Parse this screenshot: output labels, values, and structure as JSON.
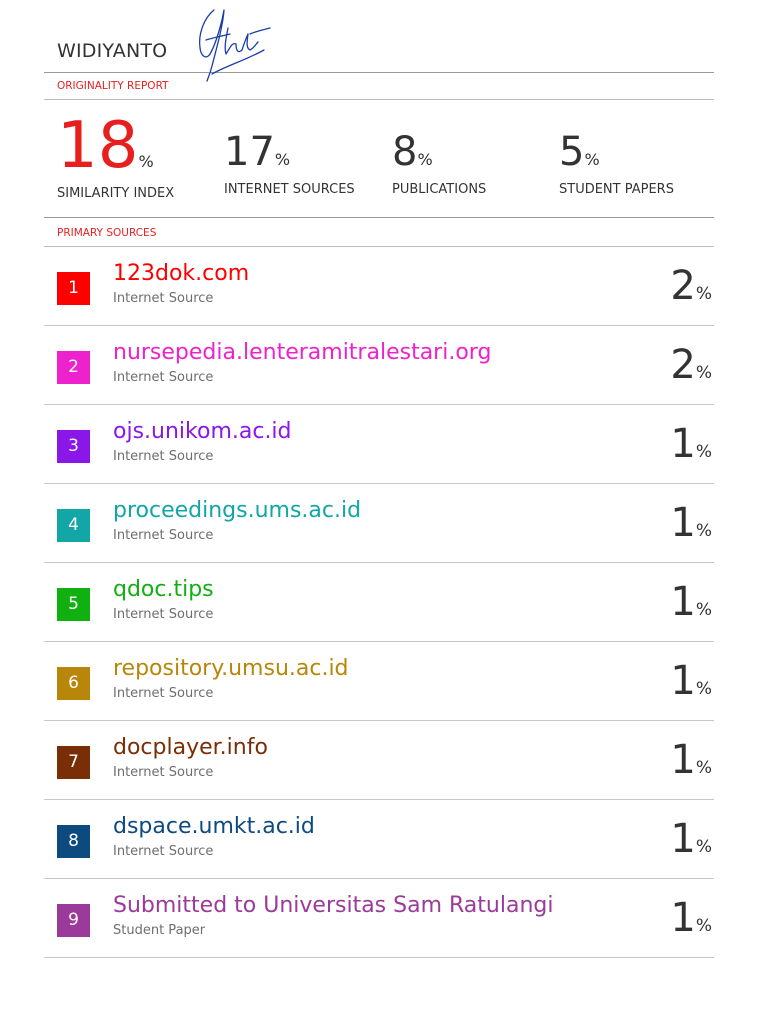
{
  "header": {
    "author": "WIDIYANTO",
    "signature_color": "#1a3ea8"
  },
  "report": {
    "title": "ORIGINALITY REPORT",
    "accent_color": "#e81f1f"
  },
  "stats": [
    {
      "value": "18",
      "unit": "%",
      "label": "SIMILARITY INDEX"
    },
    {
      "value": "17",
      "unit": "%",
      "label": "INTERNET SOURCES"
    },
    {
      "value": "8",
      "unit": "%",
      "label": "PUBLICATIONS"
    },
    {
      "value": "5",
      "unit": "%",
      "label": "STUDENT PAPERS"
    }
  ],
  "primary_sources": {
    "title": "PRIMARY SOURCES",
    "items": [
      {
        "rank": "1",
        "name": "123dok.com",
        "type": "Internet Source",
        "percent": "2",
        "unit": "%",
        "color": "#ff0000"
      },
      {
        "rank": "2",
        "name": "nursepedia.lenteramitralestari.org",
        "type": "Internet Source",
        "percent": "2",
        "unit": "%",
        "color": "#ee22cc"
      },
      {
        "rank": "3",
        "name": "ojs.unikom.ac.id",
        "type": "Internet Source",
        "percent": "1",
        "unit": "%",
        "color": "#8b16e8"
      },
      {
        "rank": "4",
        "name": "proceedings.ums.ac.id",
        "type": "Internet Source",
        "percent": "1",
        "unit": "%",
        "color": "#12a6a6"
      },
      {
        "rank": "5",
        "name": "qdoc.tips",
        "type": "Internet Source",
        "percent": "1",
        "unit": "%",
        "color": "#11b011"
      },
      {
        "rank": "6",
        "name": "repository.umsu.ac.id",
        "type": "Internet Source",
        "percent": "1",
        "unit": "%",
        "color": "#b8860b"
      },
      {
        "rank": "7",
        "name": "docplayer.info",
        "type": "Internet Source",
        "percent": "1",
        "unit": "%",
        "color": "#7a2e06"
      },
      {
        "rank": "8",
        "name": "dspace.umkt.ac.id",
        "type": "Internet Source",
        "percent": "1",
        "unit": "%",
        "color": "#0d4a80"
      },
      {
        "rank": "9",
        "name": "Submitted to Universitas Sam Ratulangi",
        "type": "Student Paper",
        "percent": "1",
        "unit": "%",
        "color": "#9b3a9b"
      }
    ]
  }
}
